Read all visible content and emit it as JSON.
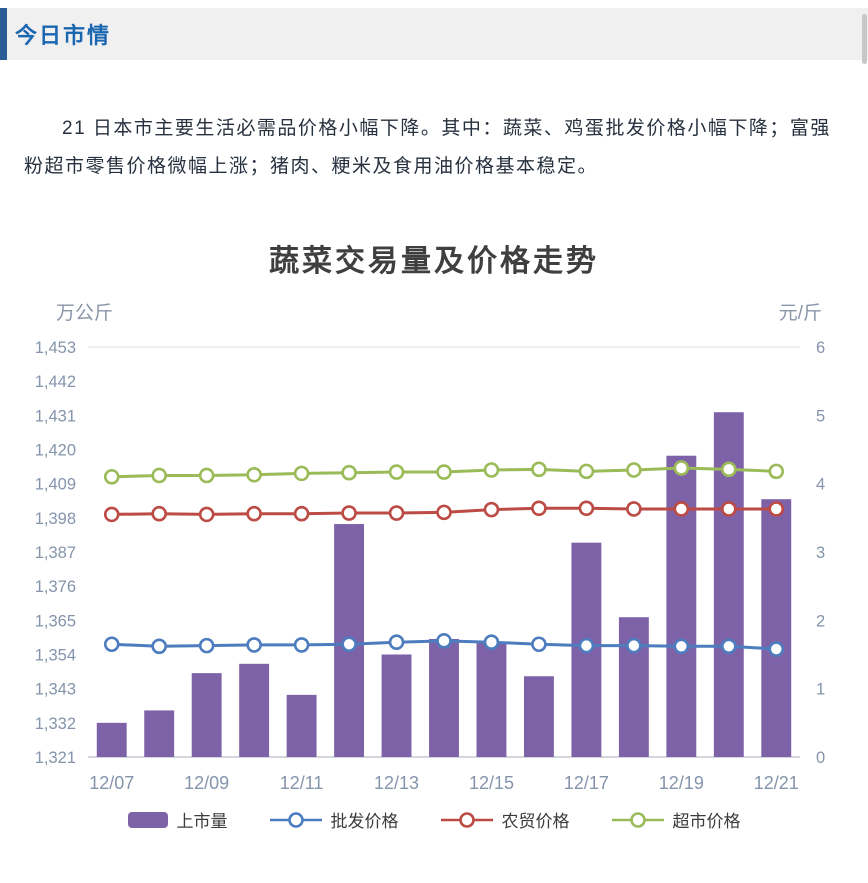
{
  "header": {
    "title": "今日市情",
    "accent_color": "#2a5b96",
    "title_color": "#1b66b1"
  },
  "paragraph": {
    "text": "21 日本市主要生活必需品价格小幅下降。其中：蔬菜、鸡蛋批发价格小幅下降；富强粉超市零售价格微幅上涨；猪肉、粳米及食用油价格基本稳定。"
  },
  "chart_data": {
    "type": "bar",
    "title": "蔬菜交易量及价格走势",
    "ylabel_left": "万公斤",
    "ylabel_right": "元/斤",
    "grid": false,
    "legend_position": "bottom",
    "categories": [
      "12/07",
      "12/08",
      "12/09",
      "12/10",
      "12/11",
      "12/12",
      "12/13",
      "12/14",
      "12/15",
      "12/16",
      "12/17",
      "12/18",
      "12/19",
      "12/20",
      "12/21"
    ],
    "x_tick_labels": [
      "12/07",
      "12/09",
      "12/11",
      "12/13",
      "12/15",
      "12/17",
      "12/19",
      "12/21"
    ],
    "left_axis": {
      "min": 1321,
      "max": 1453,
      "step": 11
    },
    "right_axis": {
      "min": 0,
      "max": 6,
      "step": 1
    },
    "bar_series": {
      "key": "volume",
      "name": "上市量",
      "axis": "left",
      "color": "#7e62a8",
      "values": [
        1332,
        1336,
        1348,
        1351,
        1341,
        1396,
        1354,
        1359,
        1358,
        1347,
        1390,
        1366,
        1418,
        1432,
        1404
      ]
    },
    "line_series": [
      {
        "key": "wholesale-price",
        "name": "批发价格",
        "axis": "right",
        "color": "#4d7dbe",
        "values": [
          1.65,
          1.62,
          1.63,
          1.64,
          1.64,
          1.65,
          1.68,
          1.7,
          1.68,
          1.65,
          1.63,
          1.63,
          1.62,
          1.62,
          1.58
        ]
      },
      {
        "key": "farmers-market-price",
        "name": "农贸价格",
        "axis": "right",
        "color": "#bc4b45",
        "values": [
          3.55,
          3.56,
          3.55,
          3.56,
          3.56,
          3.57,
          3.57,
          3.58,
          3.62,
          3.64,
          3.64,
          3.63,
          3.63,
          3.63,
          3.63
        ]
      },
      {
        "key": "supermarket-price",
        "name": "超市价格",
        "axis": "right",
        "color": "#9bbb59",
        "values": [
          4.1,
          4.12,
          4.12,
          4.13,
          4.15,
          4.16,
          4.17,
          4.17,
          4.2,
          4.21,
          4.18,
          4.2,
          4.23,
          4.21,
          4.18
        ]
      }
    ]
  }
}
